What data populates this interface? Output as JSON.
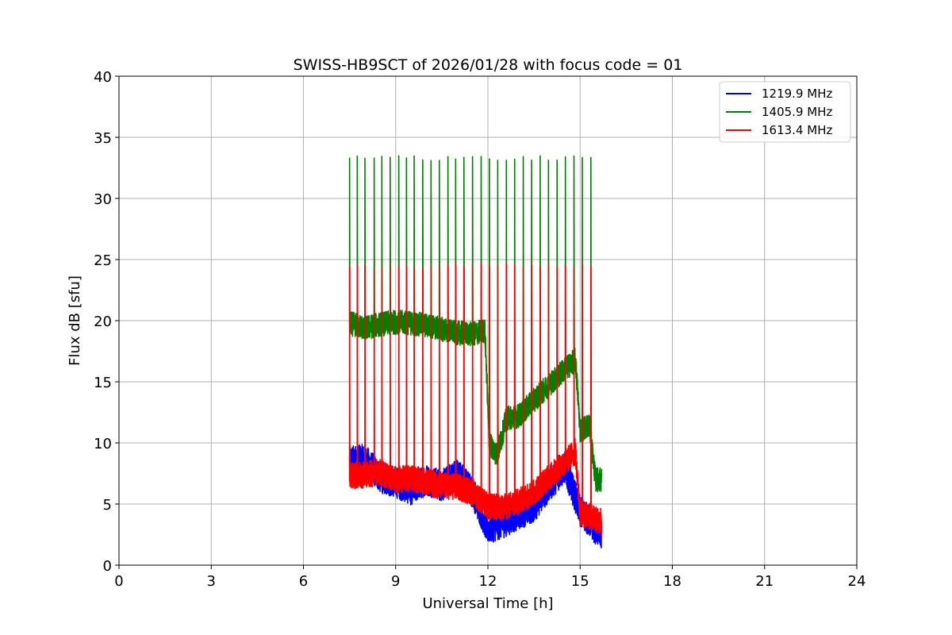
{
  "chart_data": {
    "type": "line",
    "title": "SWISS-HB9SCT of 2026/01/28 with focus code = 01",
    "xlabel": "Universal Time [h]",
    "ylabel": "Flux dB [sfu]",
    "xlim": [
      0,
      24
    ],
    "ylim": [
      0,
      40
    ],
    "xticks": [
      0,
      3,
      6,
      9,
      12,
      15,
      18,
      21,
      24
    ],
    "yticks": [
      0,
      5,
      10,
      15,
      20,
      25,
      30,
      35,
      40
    ],
    "grid": true,
    "legend_position": "top-right",
    "time_span": [
      7.5,
      15.7
    ],
    "calibration_spikes": {
      "times": [
        7.5,
        7.75,
        8.0,
        8.3,
        8.55,
        8.82,
        9.1,
        9.35,
        9.6,
        9.88,
        10.15,
        10.42,
        10.7,
        10.95,
        11.22,
        11.5,
        11.78,
        12.05,
        12.32,
        12.6,
        12.87,
        13.15,
        13.42,
        13.7,
        13.97,
        14.25,
        14.52,
        14.8,
        15.07,
        15.35
      ],
      "peaks": {
        "1405.9 MHz": 33.3,
        "1613.4 MHz": 24.5
      }
    },
    "series": [
      {
        "name": "1219.9 MHz",
        "color": "#0000ff",
        "x": [
          7.5,
          8.0,
          8.5,
          9.0,
          9.5,
          10.0,
          10.5,
          11.0,
          11.5,
          12.0,
          12.5,
          13.0,
          13.5,
          14.0,
          14.5,
          15.0,
          15.5,
          15.7
        ],
        "y": [
          8.5,
          8.6,
          7.2,
          6.8,
          6.2,
          7.0,
          6.5,
          7.5,
          6.0,
          3.0,
          3.5,
          4.2,
          4.8,
          6.5,
          8.0,
          4.5,
          3.0,
          2.5
        ],
        "noise": 1.3
      },
      {
        "name": "1405.9 MHz",
        "color": "#008000",
        "x": [
          7.5,
          8.0,
          8.5,
          9.0,
          9.5,
          10.0,
          10.5,
          11.0,
          11.5,
          11.9,
          12.05,
          12.3,
          12.6,
          13.0,
          13.5,
          14.0,
          14.5,
          14.85,
          15.0,
          15.3,
          15.5,
          15.7
        ],
        "y": [
          19.8,
          19.4,
          19.7,
          19.9,
          19.8,
          19.6,
          19.3,
          19.0,
          18.9,
          19.2,
          10.0,
          9.0,
          12.0,
          12.2,
          13.5,
          14.8,
          16.0,
          16.8,
          11.0,
          11.5,
          7.0,
          7.0
        ],
        "noise": 1.0
      },
      {
        "name": "1613.4 MHz",
        "color": "#ff0000",
        "x": [
          7.5,
          8.0,
          8.5,
          9.0,
          9.5,
          10.0,
          10.5,
          11.0,
          11.5,
          12.0,
          12.5,
          13.0,
          13.5,
          14.0,
          14.5,
          14.85,
          15.0,
          15.3,
          15.5,
          15.7
        ],
        "y": [
          7.3,
          7.4,
          7.6,
          7.0,
          7.1,
          6.8,
          6.5,
          6.4,
          6.0,
          4.8,
          4.7,
          5.2,
          6.0,
          7.2,
          8.4,
          9.3,
          4.2,
          4.0,
          3.8,
          3.5
        ],
        "noise": 1.1
      }
    ]
  }
}
